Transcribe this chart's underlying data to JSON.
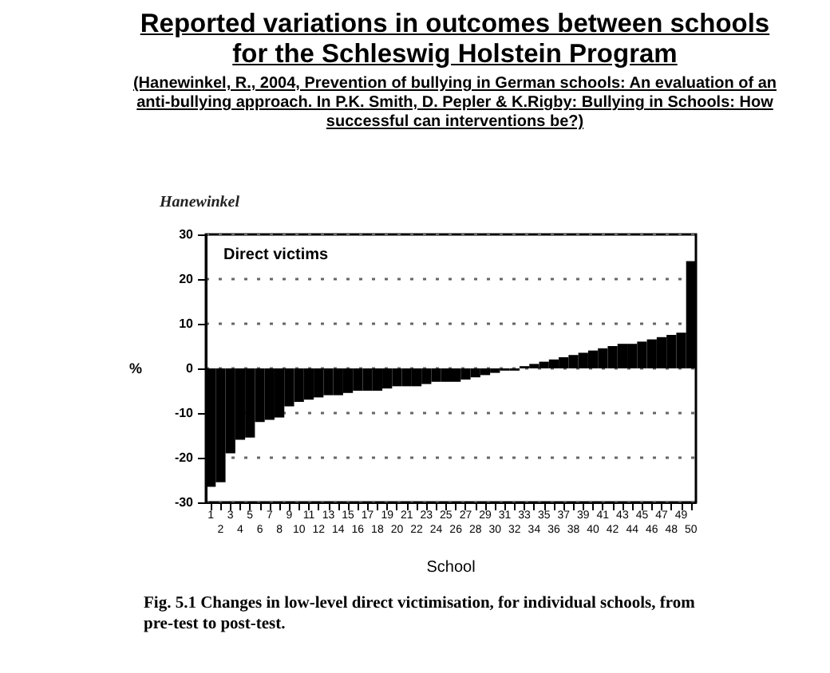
{
  "chart_data": {
    "type": "bar",
    "title": "Reported variations  in outcomes between schools for the Schleswig Holstein  Program",
    "subtitle": "(Hanewinkel, R., 2004, Prevention of bullying in German schools: An evaluation of an anti-bullying approach. In P.K. Smith, D. Pepler & K.Rigby: Bullying in Schools: How successful can interventions be?)",
    "xlabel": "School",
    "ylabel": "%",
    "annotations": [
      "Hanewinkel",
      "Direct victims",
      "Fig. 5.1 Changes in low-level direct victimisation, for individual schools, from pre-test to post-test."
    ],
    "categories": [
      "1",
      "2",
      "3",
      "4",
      "5",
      "6",
      "7",
      "8",
      "9",
      "10",
      "11",
      "12",
      "13",
      "14",
      "15",
      "16",
      "17",
      "18",
      "19",
      "20",
      "21",
      "22",
      "23",
      "24",
      "25",
      "26",
      "27",
      "28",
      "29",
      "30",
      "31",
      "32",
      "33",
      "34",
      "35",
      "36",
      "37",
      "38",
      "39",
      "40",
      "41",
      "42",
      "43",
      "44",
      "45",
      "46",
      "47",
      "48",
      "49",
      "50"
    ],
    "values": [
      -26.5,
      -25.5,
      -19,
      -16,
      -15.5,
      -12,
      -11.5,
      -11,
      -8.5,
      -7.5,
      -7,
      -6.5,
      -6,
      -6,
      -5.5,
      -5,
      -5,
      -5,
      -4.5,
      -4,
      -4,
      -4,
      -3.5,
      -3,
      -3,
      -3,
      -2.5,
      -2,
      -1.5,
      -1,
      -0.5,
      -0.5,
      0.5,
      1,
      1.5,
      2,
      2.5,
      3,
      3.5,
      4,
      4.5,
      5,
      5.5,
      5.5,
      6,
      6.5,
      7,
      7.5,
      8,
      24
    ],
    "color": "#000000",
    "ylim": [
      -30,
      30
    ],
    "yticks": [
      -30,
      -20,
      -10,
      0,
      10,
      20,
      30
    ],
    "grid": "y"
  }
}
